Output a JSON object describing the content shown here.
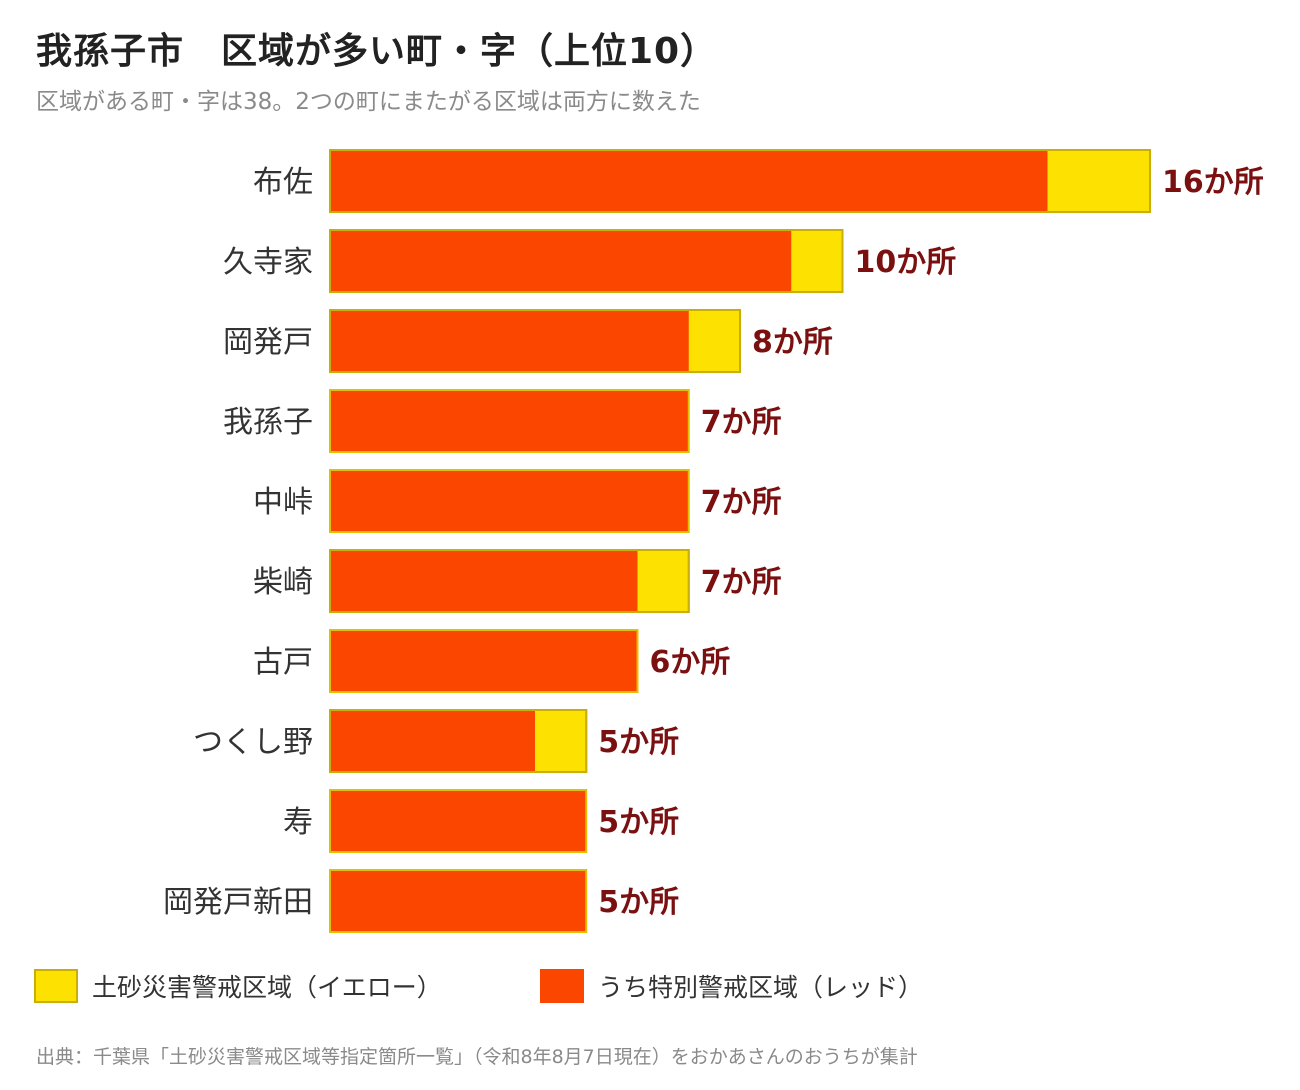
{
  "header": {
    "title": "我孫子市　区域が多い町・字（上位10）",
    "subtitle": "区域がある町・字は38。2つの町にまたがる区域は両方に数えた"
  },
  "chart_data": {
    "type": "bar",
    "orientation": "horizontal",
    "stacked": true,
    "categories": [
      "布佐",
      "久寺家",
      "岡発戸",
      "我孫子",
      "中峠",
      "柴崎",
      "古戸",
      "つくし野",
      "寿",
      "岡発戸新田"
    ],
    "series": [
      {
        "name": "うち特別警戒区域（レッド）",
        "color": "#fb4600",
        "values": [
          14,
          9,
          7,
          7,
          7,
          6,
          6,
          4,
          5,
          5
        ]
      },
      {
        "name": "土砂災害警戒区域（イエロー）",
        "color": "#fde100",
        "values": [
          2,
          1,
          1,
          0,
          0,
          1,
          0,
          1,
          0,
          0
        ]
      }
    ],
    "totals": [
      16,
      10,
      8,
      7,
      7,
      7,
      6,
      5,
      5,
      5
    ],
    "value_labels": [
      "16か所",
      "10か所",
      "8か所",
      "7か所",
      "7か所",
      "7か所",
      "6か所",
      "5か所",
      "5か所",
      "5か所"
    ],
    "xlim": [
      0,
      16
    ],
    "grid": false,
    "legend_position": "bottom-left"
  },
  "legend": {
    "items": [
      {
        "label": "土砂災害警戒区域（イエロー）",
        "color": "#fde100"
      },
      {
        "label": "うち特別警戒区域（レッド）",
        "color": "#fb4600"
      }
    ]
  },
  "footer": {
    "source": "出典：千葉県「土砂災害警戒区域等指定箇所一覧」（令和8年8月7日現在）をおかあさんのおうちが集計"
  }
}
